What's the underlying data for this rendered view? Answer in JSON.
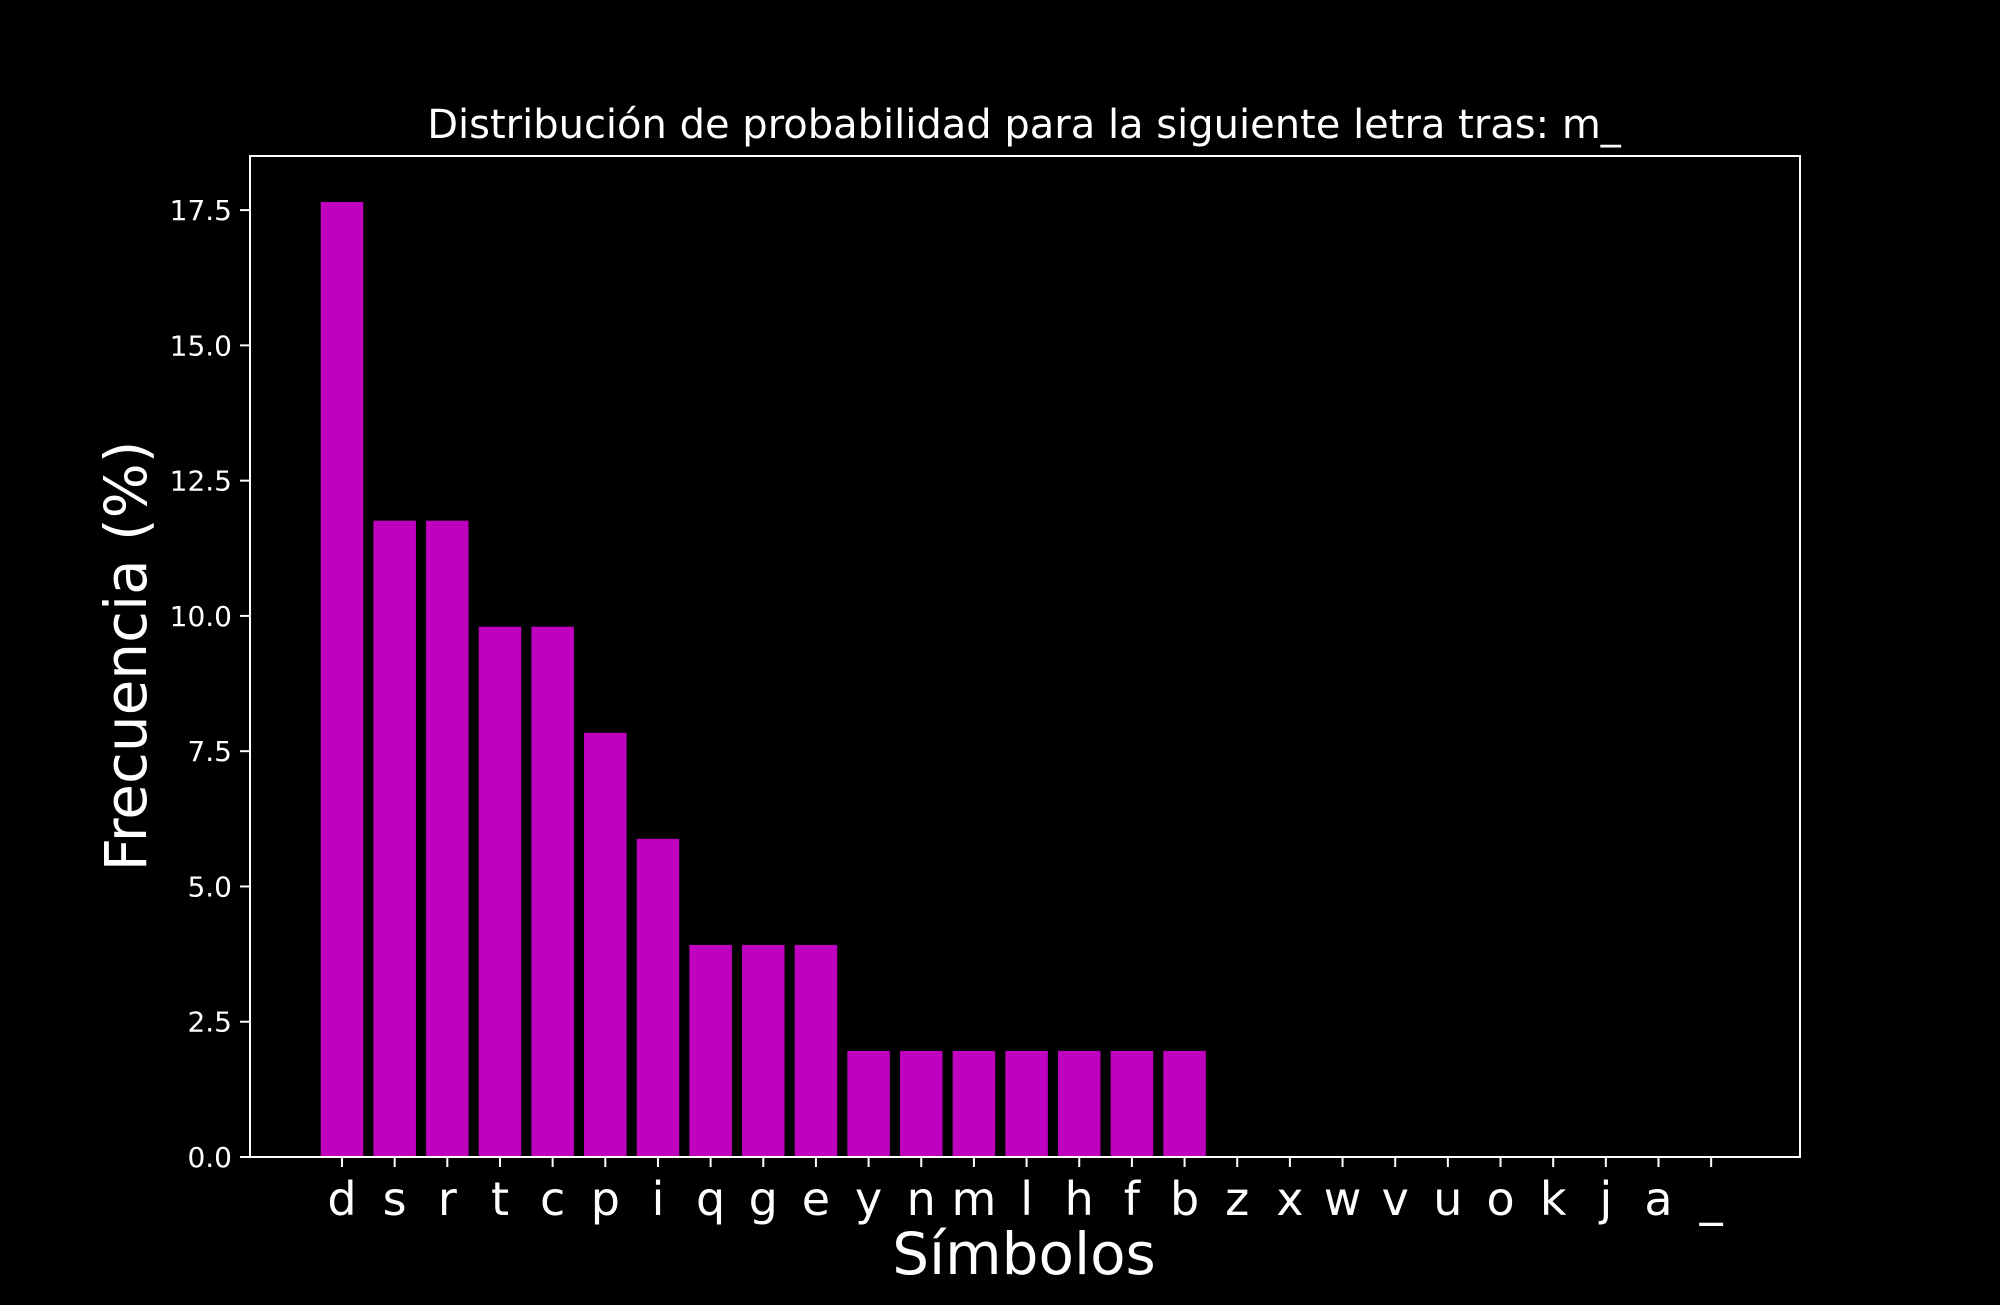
{
  "chart_data": {
    "type": "bar",
    "title": "Distribución de probabilidad para la siguiente letra tras: m_",
    "xlabel": "Símbolos",
    "ylabel": "Frecuencia (%)",
    "categories": [
      "d",
      "s",
      "r",
      "t",
      "c",
      "p",
      "i",
      "q",
      "g",
      "e",
      "y",
      "n",
      "m",
      "l",
      "h",
      "f",
      "b",
      "z",
      "x",
      "w",
      "v",
      "u",
      "o",
      "k",
      "j",
      "a",
      "_"
    ],
    "values": [
      17.65,
      11.76,
      11.76,
      9.8,
      9.8,
      7.84,
      5.88,
      3.92,
      3.92,
      3.92,
      1.96,
      1.96,
      1.96,
      1.96,
      1.96,
      1.96,
      1.96,
      0,
      0,
      0,
      0,
      0,
      0,
      0,
      0,
      0,
      0
    ],
    "ylim": [
      0,
      18.5
    ],
    "yticks": [
      "0.0",
      "2.5",
      "5.0",
      "7.5",
      "10.0",
      "12.5",
      "15.0",
      "17.5"
    ],
    "grid": false,
    "legend": "none",
    "colors": {
      "background": "#000000",
      "bar": "#bf00bf",
      "axes": "#ffffff",
      "text": "#ffffff"
    }
  }
}
